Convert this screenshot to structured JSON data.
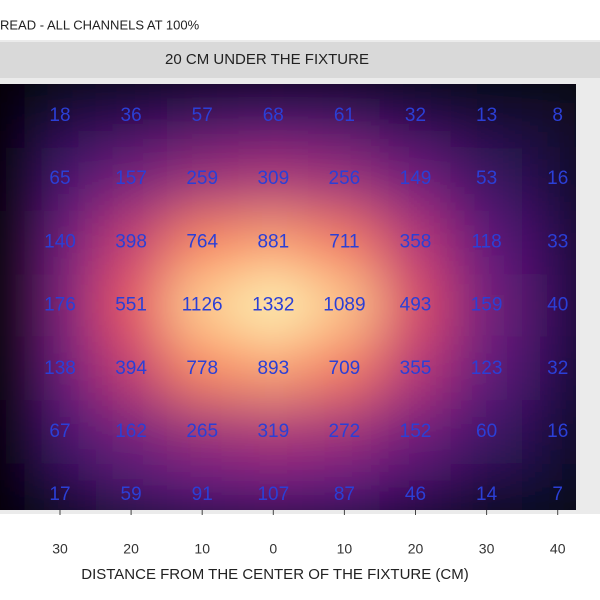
{
  "chart_data": {
    "type": "heatmap",
    "title": "READ - ALL CHANNELS AT 100%",
    "panel_title": "20 CM UNDER THE FIXTURE",
    "x_label": "DISTANCE  FROM THE CENTER OF THE FIXTURE (CM)",
    "categories": [
      "30",
      "20",
      "10",
      "0",
      "10",
      "20",
      "30",
      "40"
    ],
    "values": [
      [
        18,
        36,
        57,
        68,
        61,
        32,
        13,
        8
      ],
      [
        65,
        157,
        259,
        309,
        256,
        149,
        53,
        16
      ],
      [
        140,
        398,
        764,
        881,
        711,
        358,
        118,
        33
      ],
      [
        176,
        551,
        1126,
        1332,
        1089,
        493,
        159,
        40
      ],
      [
        138,
        394,
        778,
        893,
        709,
        355,
        123,
        32
      ],
      [
        67,
        162,
        265,
        319,
        272,
        152,
        60,
        16
      ],
      [
        17,
        59,
        91,
        107,
        87,
        46,
        14,
        7
      ]
    ],
    "colormap": [
      "#000004",
      "#1d1147",
      "#51127c",
      "#822681",
      "#b73779",
      "#e75263",
      "#fc8961",
      "#fec488",
      "#fcfdbf"
    ],
    "label_color": "#2b3fd6"
  }
}
